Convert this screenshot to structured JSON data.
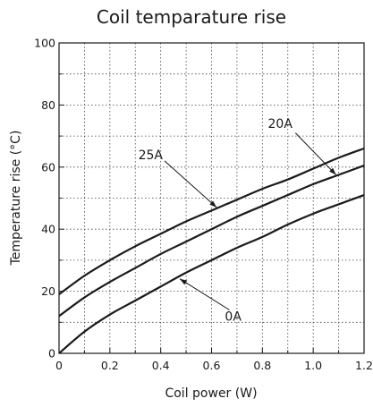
{
  "chart_data": {
    "type": "line",
    "title": "Coil temparature rise",
    "xlabel": "Coil power (W)",
    "ylabel": "Temperature rise (°C)",
    "xlim": [
      0,
      1.2
    ],
    "ylim": [
      0,
      100
    ],
    "x_major_ticks": [
      0,
      0.2,
      0.4,
      0.6,
      0.8,
      1.0,
      1.2
    ],
    "x_tick_labels": [
      "0",
      "0.2",
      "0.4",
      "0.6",
      "0.8",
      "1.0",
      "1.2"
    ],
    "x_minor_ticks": [
      0.1,
      0.3,
      0.5,
      0.7,
      0.9,
      1.1
    ],
    "y_major_ticks": [
      0,
      20,
      40,
      60,
      80,
      100
    ],
    "y_tick_labels": [
      "0",
      "20",
      "40",
      "60",
      "80",
      "100"
    ],
    "y_minor_ticks": [
      10,
      30,
      50,
      70,
      90
    ],
    "grid": true,
    "grid_style": "dotted",
    "line_color": "#1a1a1a",
    "series": [
      {
        "name": "25A",
        "x": [
          0,
          0.1,
          0.2,
          0.3,
          0.4,
          0.5,
          0.6,
          0.7,
          0.8,
          0.9,
          1.0,
          1.1,
          1.2
        ],
        "y": [
          19,
          25,
          30,
          34.5,
          38.5,
          42.5,
          46,
          49.5,
          53,
          56,
          59.5,
          63,
          66
        ]
      },
      {
        "name": "20A",
        "x": [
          0,
          0.1,
          0.2,
          0.3,
          0.4,
          0.5,
          0.6,
          0.7,
          0.8,
          0.9,
          1.0,
          1.1,
          1.2
        ],
        "y": [
          12,
          18,
          23,
          27.5,
          32,
          36,
          40,
          44,
          47.5,
          51,
          54.5,
          57.5,
          60.5
        ]
      },
      {
        "name": "0A",
        "x": [
          0,
          0.1,
          0.2,
          0.3,
          0.4,
          0.5,
          0.6,
          0.7,
          0.8,
          0.9,
          1.0,
          1.1,
          1.2
        ],
        "y": [
          0,
          7,
          12.5,
          17,
          21.5,
          26,
          30,
          34,
          37.5,
          41.5,
          45,
          48,
          51
        ]
      }
    ],
    "annotations": [
      {
        "text": "25A",
        "label_x": 0.36,
        "label_y": 64,
        "arrow_from": [
          0.415,
          62
        ],
        "arrow_to": [
          0.62,
          47
        ]
      },
      {
        "text": "20A",
        "label_x": 0.87,
        "label_y": 74,
        "arrow_from": [
          0.93,
          71
        ],
        "arrow_to": [
          1.09,
          57.5
        ]
      },
      {
        "text": "0A",
        "label_x": 0.685,
        "label_y": 12,
        "arrow_from": [
          0.67,
          14
        ],
        "arrow_to": [
          0.475,
          24
        ]
      }
    ]
  }
}
